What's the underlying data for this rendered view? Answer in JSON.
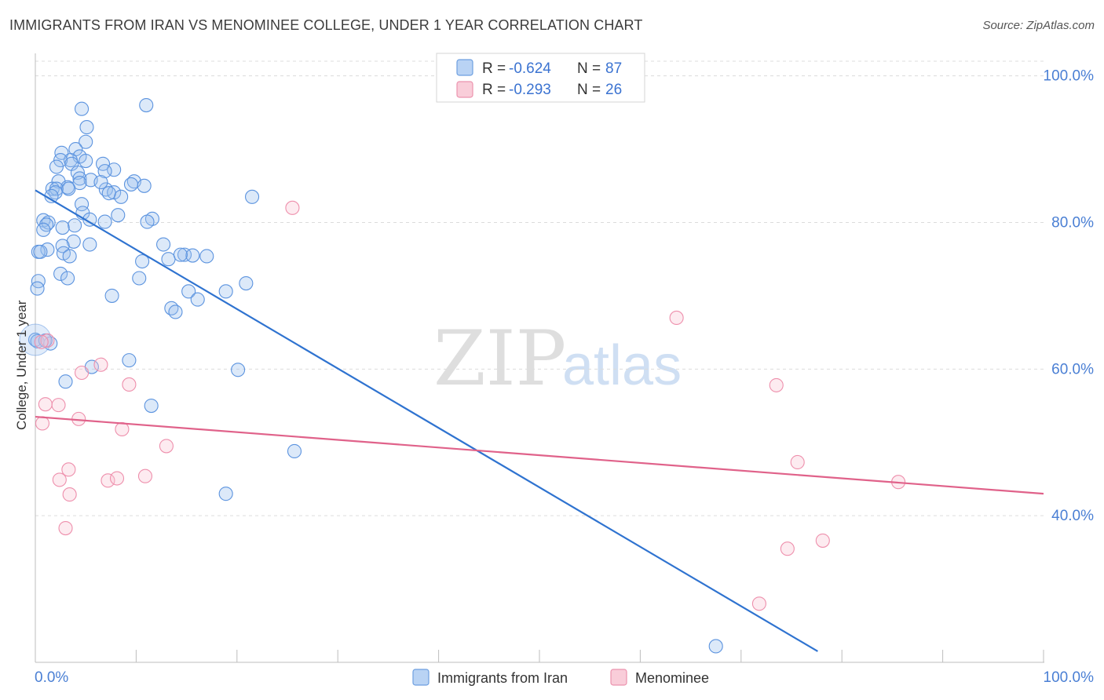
{
  "header": {
    "title": "IMMIGRANTS FROM IRAN VS MENOMINEE COLLEGE, UNDER 1 YEAR CORRELATION CHART",
    "source": "Source: ZipAtlas.com"
  },
  "watermark": {
    "zip": "ZIP",
    "atlas": "atlas"
  },
  "legend": {
    "rows": [
      {
        "r_label": "R =",
        "r_value": "-0.624",
        "n_label": "N =",
        "n_value": "87"
      },
      {
        "r_label": "R =",
        "r_value": "-0.293",
        "n_label": "N =",
        "n_value": "26"
      }
    ]
  },
  "chart_data": {
    "type": "scatter",
    "title": "IMMIGRANTS FROM IRAN VS MENOMINEE COLLEGE, UNDER 1 YEAR CORRELATION CHART",
    "xlabel": "",
    "ylabel": "College, Under 1 year",
    "xlim": [
      0,
      100
    ],
    "ylim": [
      20,
      102
    ],
    "x_tick_labels": [
      "0.0%",
      "100.0%"
    ],
    "y_tick_labels": [
      "100.0%",
      "80.0%",
      "60.0%",
      "40.0%"
    ],
    "y_ticks": [
      100,
      80,
      60,
      40
    ],
    "grid": "horizontal dashed",
    "legend_position": "top-center",
    "colors": {
      "iran": "#5b93df",
      "menominee": "#ee8fac",
      "iran_line": "#2f73d0",
      "menominee_line": "#e0628a"
    },
    "series": [
      {
        "name": "Immigrants from Iran",
        "points": [
          [
            4.6,
            95.5
          ],
          [
            11,
            96
          ],
          [
            5.1,
            93
          ],
          [
            5.0,
            91
          ],
          [
            4.0,
            90
          ],
          [
            2.6,
            89.5
          ],
          [
            4.4,
            89
          ],
          [
            3.5,
            88.5
          ],
          [
            2.5,
            88.5
          ],
          [
            3.6,
            88
          ],
          [
            5.0,
            88.4
          ],
          [
            6.7,
            88
          ],
          [
            2.1,
            87.6
          ],
          [
            7.8,
            87.2
          ],
          [
            6.9,
            87
          ],
          [
            4.2,
            86.8
          ],
          [
            4.4,
            86
          ],
          [
            5.5,
            85.8
          ],
          [
            2.3,
            85.6
          ],
          [
            9.8,
            85.6
          ],
          [
            4.4,
            85.4
          ],
          [
            9.5,
            85.2
          ],
          [
            10.8,
            85
          ],
          [
            3.2,
            84.8
          ],
          [
            1.7,
            84.6
          ],
          [
            2.1,
            84.6
          ],
          [
            2.0,
            84.1
          ],
          [
            7.0,
            84.5
          ],
          [
            7.8,
            84.1
          ],
          [
            8.5,
            83.5
          ],
          [
            1.6,
            83.6
          ],
          [
            21.5,
            83.5
          ],
          [
            4.6,
            82.5
          ],
          [
            4.7,
            81.3
          ],
          [
            8.2,
            81
          ],
          [
            5.4,
            80.4
          ],
          [
            11.6,
            80.5
          ],
          [
            0.8,
            80.3
          ],
          [
            1.3,
            80
          ],
          [
            11.1,
            80.1
          ],
          [
            6.9,
            80.1
          ],
          [
            1.1,
            79.7
          ],
          [
            3.9,
            79.6
          ],
          [
            2.7,
            79.3
          ],
          [
            0.8,
            79
          ],
          [
            3.8,
            77.4
          ],
          [
            12.7,
            77
          ],
          [
            5.4,
            77
          ],
          [
            2.7,
            76.8
          ],
          [
            1.2,
            76.3
          ],
          [
            0.3,
            76
          ],
          [
            0.5,
            76
          ],
          [
            2.8,
            75.8
          ],
          [
            3.4,
            75.4
          ],
          [
            14.8,
            75.6
          ],
          [
            15.6,
            75.5
          ],
          [
            17.0,
            75.4
          ],
          [
            13.2,
            75
          ],
          [
            10.6,
            74.7
          ],
          [
            2.5,
            73
          ],
          [
            3.2,
            72.4
          ],
          [
            10.3,
            72.4
          ],
          [
            0.3,
            72
          ],
          [
            20.9,
            71.7
          ],
          [
            0.2,
            71
          ],
          [
            15.2,
            70.6
          ],
          [
            18.9,
            70.6
          ],
          [
            7.6,
            70
          ],
          [
            16.1,
            69.5
          ],
          [
            13.5,
            68.3
          ],
          [
            13.9,
            67.8
          ],
          [
            0,
            64
          ],
          [
            1.5,
            63.5
          ],
          [
            9.3,
            61.2
          ],
          [
            5.6,
            60.3
          ],
          [
            20.1,
            59.9
          ],
          [
            3.0,
            58.3
          ],
          [
            11.5,
            55
          ],
          [
            25.7,
            48.8
          ],
          [
            18.9,
            43
          ],
          [
            67.5,
            22.2
          ],
          [
            0.2,
            63.8
          ],
          [
            1.0,
            63.9
          ],
          [
            14.4,
            75.6
          ],
          [
            6.5,
            85.5
          ],
          [
            3.3,
            84.6
          ],
          [
            7.3,
            84
          ]
        ],
        "trend": {
          "x": [
            0,
            77.6
          ],
          "y": [
            84.4,
            21.5
          ]
        }
      },
      {
        "name": "Menominee",
        "points": [
          [
            25.5,
            82
          ],
          [
            63.6,
            67
          ],
          [
            1.2,
            63.9
          ],
          [
            4.6,
            59.5
          ],
          [
            6.5,
            60.6
          ],
          [
            9.3,
            57.9
          ],
          [
            73.5,
            57.8
          ],
          [
            1.0,
            55.2
          ],
          [
            2.3,
            55.1
          ],
          [
            0.7,
            52.6
          ],
          [
            4.3,
            53.2
          ],
          [
            8.6,
            51.8
          ],
          [
            13.0,
            49.5
          ],
          [
            75.6,
            47.3
          ],
          [
            3.3,
            46.3
          ],
          [
            2.4,
            44.9
          ],
          [
            7.2,
            44.8
          ],
          [
            8.1,
            45.1
          ],
          [
            10.9,
            45.4
          ],
          [
            85.6,
            44.6
          ],
          [
            3.4,
            42.9
          ],
          [
            3.0,
            38.3
          ],
          [
            78.1,
            36.6
          ],
          [
            74.6,
            35.5
          ],
          [
            71.8,
            28
          ],
          [
            0.6,
            63.7
          ]
        ],
        "trend": {
          "x": [
            0,
            100
          ],
          "y": [
            53.5,
            43
          ]
        }
      }
    ]
  },
  "bottom_legend": {
    "items": [
      {
        "label": "Immigrants from Iran"
      },
      {
        "label": "Menominee"
      }
    ]
  }
}
